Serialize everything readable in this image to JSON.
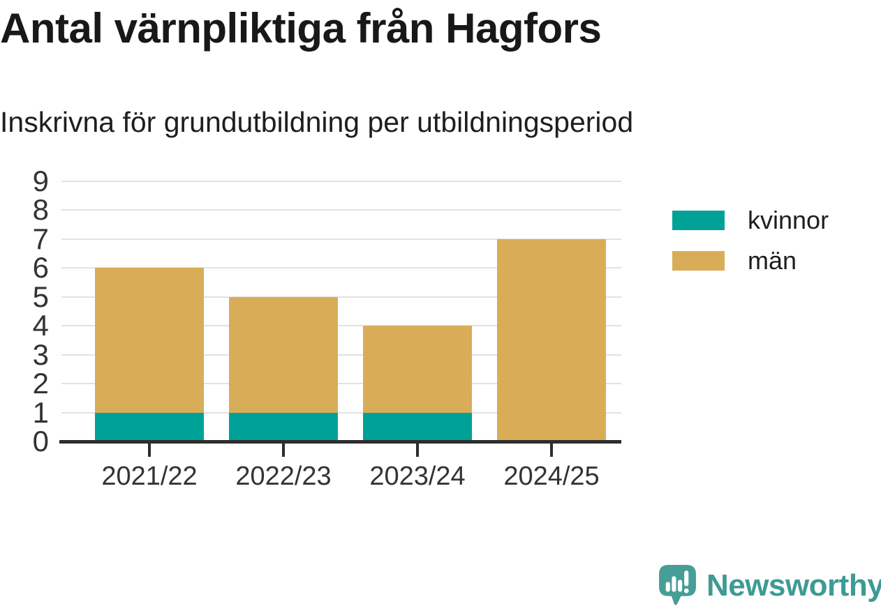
{
  "header": {
    "title": "Antal värnpliktiga från Hagfors",
    "subtitle": "Inskrivna för grundutbildning per utbildningsperiod"
  },
  "chart_data": {
    "type": "bar",
    "stacked": true,
    "title": "Antal värnpliktiga från Hagfors",
    "subtitle": "Inskrivna för grundutbildning per utbildningsperiod",
    "categories": [
      "2021/22",
      "2022/23",
      "2023/24",
      "2024/25"
    ],
    "series": [
      {
        "name": "kvinnor",
        "color": "#00a298",
        "values": [
          1,
          1,
          1,
          0
        ]
      },
      {
        "name": "män",
        "color": "#d9ad58",
        "values": [
          5,
          4,
          3,
          7
        ]
      }
    ],
    "totals": [
      6,
      5,
      4,
      7
    ],
    "xlabel": "",
    "ylabel": "",
    "ylim": [
      0,
      9
    ],
    "yticks": [
      0,
      1,
      2,
      3,
      4,
      5,
      6,
      7,
      8,
      9
    ],
    "grid": "horizontal",
    "legend_position": "right",
    "colors": {
      "axis": "#2d2d2d",
      "gridline": "#e2e2e2",
      "tick_text": "#333333"
    }
  },
  "branding": {
    "name": "Newsworthy",
    "color": "#3e9a94",
    "icon": "chart-speech-bubble-icon"
  }
}
